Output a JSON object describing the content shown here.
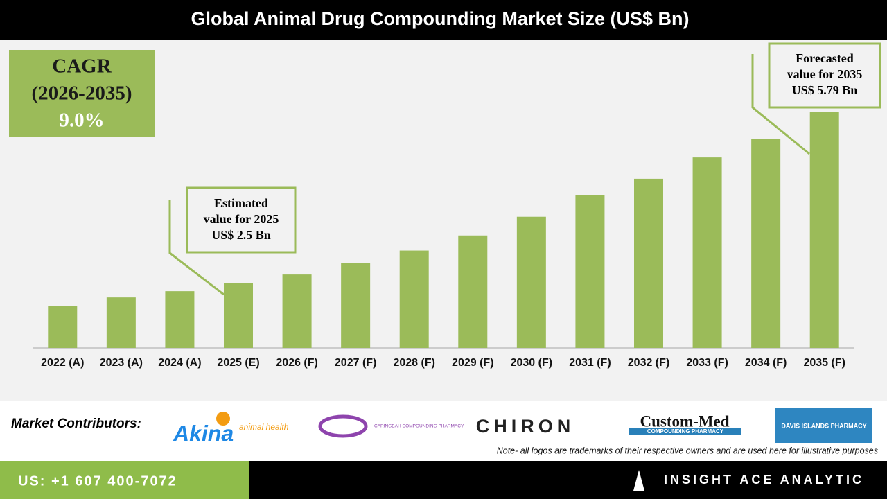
{
  "header": {
    "title": "Global Animal Drug Compounding Market Size (US$ Bn)"
  },
  "chart_data": {
    "type": "bar",
    "categories": [
      "2022 (A)",
      "2023 (A)",
      "2024 (A)",
      "2025 (E)",
      "2026 (F)",
      "2027 (F)",
      "2028 (F)",
      "2029 (F)",
      "2030 (F)",
      "2031 (F)",
      "2032 (F)",
      "2033 (F)",
      "2034 (F)",
      "2035 (F)"
    ],
    "values": [
      2.06,
      2.23,
      2.35,
      2.5,
      2.67,
      2.89,
      3.13,
      3.42,
      3.78,
      4.2,
      4.51,
      4.92,
      5.27,
      5.79
    ],
    "color": "#9bbb59",
    "ylim": [
      1.26,
      6.0
    ],
    "cagr": {
      "label": "CAGR",
      "period": "(2026-2035)",
      "rate": "9.0%"
    },
    "annotations": [
      {
        "lines": [
          "Estimated",
          "value for 2025",
          "US$ 2.5 Bn"
        ]
      },
      {
        "lines": [
          "Forecasted",
          "value for 2035",
          "US$ 5.79 Bn"
        ]
      }
    ]
  },
  "contributors": {
    "label": "Market Contributors:",
    "logos": [
      "Akina",
      "animal health",
      "CARINGBAH COMPOUNDING PHARMACY",
      "CHIRON",
      "Custom-Med",
      "COMPOUNDING PHARMACY",
      "DAVIS ISLANDS PHARMACY"
    ]
  },
  "note": "Note- all logos are trademarks of their respective owners and are used here for illustrative purposes",
  "footer": {
    "phone": "US: +1 607 400-7072",
    "brand": "INSIGHT ACE ANALYTIC"
  }
}
